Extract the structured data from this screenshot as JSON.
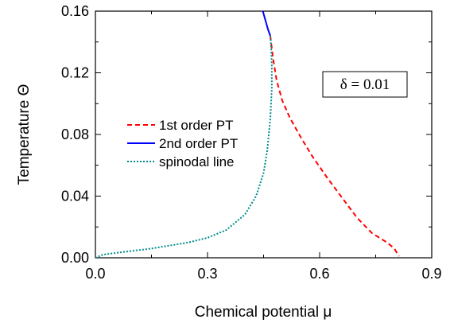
{
  "chart_data": {
    "type": "line",
    "xlabel": "Chemical potential μ",
    "ylabel": "Temperature Θ",
    "xlim": [
      0.0,
      0.9
    ],
    "ylim": [
      0.0,
      0.16
    ],
    "xticks": [
      "0.0",
      "0.3",
      "0.6",
      "0.9"
    ],
    "xtick_values": [
      0.0,
      0.3,
      0.6,
      0.9
    ],
    "yticks": [
      "0.00",
      "0.04",
      "0.08",
      "0.12",
      "0.16"
    ],
    "ytick_values": [
      0.0,
      0.04,
      0.08,
      0.12,
      0.16
    ],
    "grid": false,
    "legend_position": "center-left",
    "annotation": "δ = 0.01",
    "series": [
      {
        "name": "1st order PT",
        "color": "#ff0000",
        "style": "dashed",
        "points": [
          [
            0.468,
            0.144
          ],
          [
            0.475,
            0.13
          ],
          [
            0.485,
            0.115
          ],
          [
            0.5,
            0.102
          ],
          [
            0.52,
            0.091
          ],
          [
            0.55,
            0.078
          ],
          [
            0.58,
            0.066
          ],
          [
            0.62,
            0.052
          ],
          [
            0.66,
            0.039
          ],
          [
            0.7,
            0.026
          ],
          [
            0.74,
            0.016
          ],
          [
            0.78,
            0.01
          ],
          [
            0.8,
            0.006
          ],
          [
            0.812,
            0.001
          ]
        ]
      },
      {
        "name": "2nd order PT",
        "color": "#0000ff",
        "style": "solid",
        "points": [
          [
            0.448,
            0.16
          ],
          [
            0.455,
            0.154
          ],
          [
            0.462,
            0.148
          ],
          [
            0.468,
            0.144
          ]
        ]
      },
      {
        "name": "spinodal line",
        "color": "#008b8b",
        "style": "dotted",
        "points": [
          [
            0.0,
            0.0
          ],
          [
            0.02,
            0.002
          ],
          [
            0.05,
            0.003
          ],
          [
            0.1,
            0.0045
          ],
          [
            0.15,
            0.006
          ],
          [
            0.2,
            0.008
          ],
          [
            0.25,
            0.01
          ],
          [
            0.3,
            0.013
          ],
          [
            0.35,
            0.018
          ],
          [
            0.4,
            0.028
          ],
          [
            0.43,
            0.04
          ],
          [
            0.45,
            0.055
          ],
          [
            0.46,
            0.07
          ],
          [
            0.468,
            0.09
          ],
          [
            0.472,
            0.11
          ],
          [
            0.472,
            0.125
          ],
          [
            0.47,
            0.138
          ],
          [
            0.468,
            0.144
          ]
        ]
      }
    ]
  }
}
